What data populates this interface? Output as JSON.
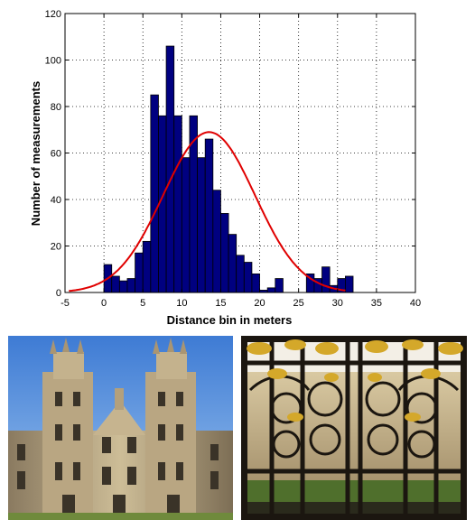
{
  "chart_data": {
    "type": "bar",
    "title": "",
    "xlabel": "Distance bin in meters",
    "ylabel": "Number of measurements",
    "xlim": [
      -5,
      40
    ],
    "ylim": [
      0,
      120
    ],
    "xticks": [
      -5,
      0,
      5,
      10,
      15,
      20,
      25,
      30,
      35,
      40
    ],
    "yticks": [
      0,
      20,
      40,
      60,
      80,
      100,
      120
    ],
    "grid": true,
    "bin_width": 1,
    "bins": [
      {
        "x": 0,
        "y": 12
      },
      {
        "x": 1,
        "y": 7
      },
      {
        "x": 2,
        "y": 5
      },
      {
        "x": 3,
        "y": 6
      },
      {
        "x": 4,
        "y": 17
      },
      {
        "x": 5,
        "y": 22
      },
      {
        "x": 6,
        "y": 85
      },
      {
        "x": 7,
        "y": 76
      },
      {
        "x": 8,
        "y": 106
      },
      {
        "x": 9,
        "y": 76
      },
      {
        "x": 10,
        "y": 58
      },
      {
        "x": 11,
        "y": 76
      },
      {
        "x": 12,
        "y": 58
      },
      {
        "x": 13,
        "y": 66
      },
      {
        "x": 14,
        "y": 44
      },
      {
        "x": 15,
        "y": 34
      },
      {
        "x": 16,
        "y": 25
      },
      {
        "x": 17,
        "y": 16
      },
      {
        "x": 18,
        "y": 13
      },
      {
        "x": 19,
        "y": 8
      },
      {
        "x": 20,
        "y": 1
      },
      {
        "x": 21,
        "y": 2
      },
      {
        "x": 22,
        "y": 6
      },
      {
        "x": 23,
        "y": 0
      },
      {
        "x": 24,
        "y": 0
      },
      {
        "x": 25,
        "y": 0
      },
      {
        "x": 26,
        "y": 8
      },
      {
        "x": 27,
        "y": 6
      },
      {
        "x": 28,
        "y": 11
      },
      {
        "x": 29,
        "y": 3
      },
      {
        "x": 30,
        "y": 6
      },
      {
        "x": 31,
        "y": 7
      }
    ],
    "fit_curve": {
      "type": "gaussian",
      "peak": 69,
      "mean": 13.5,
      "sigma": 5.9,
      "x_range": [
        -4.5,
        31
      ],
      "color": "#e00000"
    },
    "bar_color": "#000080",
    "bar_edge": "#000000"
  },
  "photos": [
    {
      "icon": "college-building-facade"
    },
    {
      "icon": "ornate-gilded-gate"
    }
  ]
}
